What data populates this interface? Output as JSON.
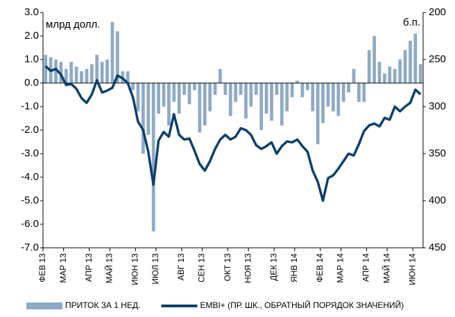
{
  "chart_data": {
    "type": "combo",
    "annotations": [
      "млрд долл.",
      "б.п."
    ],
    "categories": [
      "ФЕВ 13",
      null,
      null,
      null,
      "МАР 13",
      null,
      null,
      null,
      null,
      "АПР 13",
      null,
      null,
      null,
      "МАЙ 13",
      null,
      null,
      null,
      null,
      "ИЮН 13",
      null,
      null,
      null,
      "ИЮЛ 13",
      null,
      null,
      null,
      null,
      "АВГ 13",
      null,
      null,
      null,
      "СЕН 13",
      null,
      null,
      null,
      null,
      "ОКТ 13",
      null,
      null,
      null,
      "НОЯ 13",
      null,
      null,
      null,
      null,
      "ДЕК 13",
      null,
      null,
      null,
      "ЯНВ 14",
      null,
      null,
      null,
      null,
      "ФЕВ 14",
      null,
      null,
      null,
      "МАР 14",
      null,
      null,
      null,
      null,
      "АПР 14",
      null,
      null,
      null,
      "МАЙ 14",
      null,
      null,
      null,
      null,
      "ИЮН 14",
      null
    ],
    "series": [
      {
        "name": "ПРИТОК ЗА 1 НЕД.",
        "type": "bar",
        "color": "#8eaac6",
        "values": [
          1.2,
          1.1,
          1.0,
          0.9,
          0.6,
          0.9,
          0.7,
          0.5,
          0.6,
          0.8,
          1.2,
          0.9,
          1.0,
          2.6,
          2.2,
          0.5,
          0.5,
          -0.3,
          -1.2,
          -3.0,
          -2.2,
          -6.3,
          -1.3,
          -1.0,
          -1.8,
          -0.8,
          -1.3,
          -0.5,
          -0.9,
          -0.3,
          -2.1,
          -1.8,
          -1.2,
          -0.5,
          0.6,
          -0.5,
          -1.4,
          -0.8,
          -0.5,
          -1.5,
          -1.0,
          -0.5,
          -2.0,
          -1.3,
          -1.6,
          -0.5,
          -1.8,
          -1.2,
          -0.6,
          0.1,
          -0.6,
          -0.3,
          -1.2,
          -2.6,
          -1.7,
          -1.0,
          -1.2,
          -1.4,
          -0.8,
          -0.4,
          0.6,
          -0.8,
          -0.8,
          1.4,
          2.0,
          0.9,
          0.4,
          0.7,
          0.6,
          1.0,
          1.4,
          1.8,
          2.1,
          0.8
        ]
      },
      {
        "name": "EMBI+ (ПР. ШК., ОБРАТНЫЙ ПОРЯДОК ЗНАЧЕНИЙ)",
        "type": "line",
        "axis": "y2",
        "color": "#0d3f6e",
        "values": [
          257,
          262,
          260,
          266,
          277,
          276,
          281,
          291,
          296,
          287,
          272,
          285,
          283,
          280,
          267,
          270,
          275,
          290,
          316,
          325,
          348,
          383,
          336,
          327,
          332,
          308,
          330,
          335,
          334,
          347,
          361,
          368,
          358,
          345,
          335,
          330,
          335,
          332,
          323,
          325,
          330,
          341,
          345,
          342,
          338,
          350,
          342,
          337,
          338,
          335,
          342,
          348,
          368,
          380,
          400,
          376,
          373,
          366,
          358,
          350,
          352,
          340,
          326,
          320,
          318,
          321,
          312,
          314,
          300,
          305,
          300,
          296,
          282,
          287
        ]
      }
    ],
    "ylim": [
      -7,
      3
    ],
    "yticks": [
      {
        "value": 3,
        "label": "3.0"
      },
      {
        "value": 2,
        "label": "2.0"
      },
      {
        "value": 1,
        "label": "1.0"
      },
      {
        "value": 0,
        "label": "0.0"
      },
      {
        "value": -1,
        "label": "-1.0"
      },
      {
        "value": -2,
        "label": "-2.0"
      },
      {
        "value": -3,
        "label": "-3.0"
      },
      {
        "value": -4,
        "label": "-4.0"
      },
      {
        "value": -5,
        "label": "-5.0"
      },
      {
        "value": -6,
        "label": "-6.0"
      },
      {
        "value": -7,
        "label": "-7.0"
      }
    ],
    "y2lim": [
      450,
      200
    ],
    "y2ticks": [
      200,
      250,
      300,
      350,
      400,
      450
    ]
  }
}
